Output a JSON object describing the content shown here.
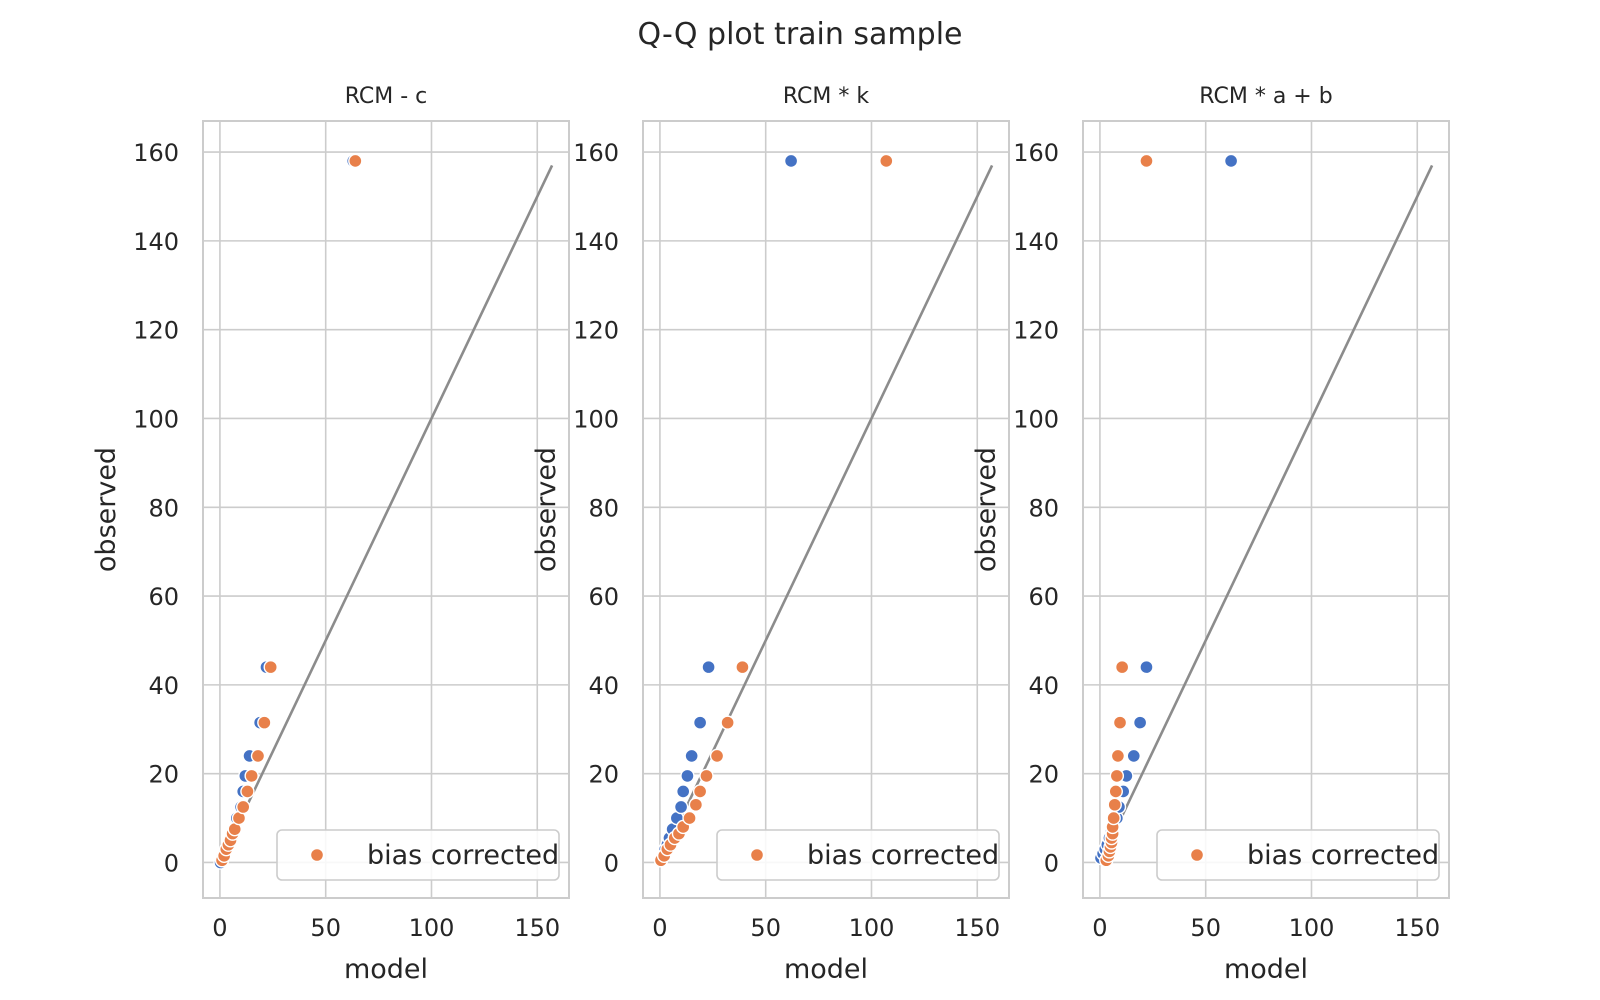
{
  "figure": {
    "title": "Q-Q plot train sample"
  },
  "colors": {
    "raw": "#4472c4",
    "bias_corrected": "#e8804a",
    "identity_line": "#8c8c8c",
    "grid": "#cccccc",
    "frame": "#cccccc"
  },
  "chart_data": [
    {
      "type": "scatter",
      "title": "RCM - c",
      "xlabel": "model",
      "ylabel": "observed",
      "xlim": [
        -8,
        165
      ],
      "ylim": [
        -8,
        167
      ],
      "xticks": [
        0,
        50,
        100,
        150
      ],
      "yticks": [
        0,
        20,
        40,
        60,
        80,
        100,
        120,
        140,
        160
      ],
      "grid": true,
      "legend": {
        "position": "lower-right",
        "entries": [
          "bias corrected"
        ]
      },
      "reference_line": {
        "from": [
          0,
          0
        ],
        "to": [
          157,
          157
        ]
      },
      "series": [
        {
          "color_key": "raw",
          "points": [
            [
              0.3,
              0
            ],
            [
              1,
              1
            ],
            [
              2,
              2
            ],
            [
              3,
              3
            ],
            [
              4,
              4
            ],
            [
              5,
              5
            ],
            [
              6,
              6
            ],
            [
              7,
              7.5
            ],
            [
              8,
              10
            ],
            [
              10,
              12.5
            ],
            [
              11,
              16
            ],
            [
              12,
              19.5
            ],
            [
              14,
              24
            ],
            [
              19,
              31.5
            ],
            [
              22,
              44
            ],
            [
              63,
              158
            ]
          ]
        },
        {
          "name": "bias corrected",
          "color_key": "bias_corrected",
          "points": [
            [
              1,
              0.5
            ],
            [
              2,
              1.5
            ],
            [
              3,
              3
            ],
            [
              4,
              4
            ],
            [
              5,
              5
            ],
            [
              6,
              6.5
            ],
            [
              7,
              7.5
            ],
            [
              9,
              10
            ],
            [
              11,
              12.5
            ],
            [
              13,
              16
            ],
            [
              15,
              19.5
            ],
            [
              18,
              24
            ],
            [
              21,
              31.5
            ],
            [
              24,
              44
            ],
            [
              64,
              158
            ]
          ]
        }
      ]
    },
    {
      "type": "scatter",
      "title": "RCM * k",
      "xlabel": "model",
      "ylabel": "observed",
      "xlim": [
        -8,
        165
      ],
      "ylim": [
        -8,
        167
      ],
      "xticks": [
        0,
        50,
        100,
        150
      ],
      "yticks": [
        0,
        20,
        40,
        60,
        80,
        100,
        120,
        140,
        160
      ],
      "grid": true,
      "legend": {
        "position": "lower-right",
        "entries": [
          "bias corrected"
        ]
      },
      "reference_line": {
        "from": [
          0,
          0
        ],
        "to": [
          157,
          157
        ]
      },
      "series": [
        {
          "color_key": "raw",
          "points": [
            [
              0.5,
              0.5
            ],
            [
              1.5,
              1.5
            ],
            [
              2.5,
              3
            ],
            [
              3.5,
              4
            ],
            [
              4.5,
              5.5
            ],
            [
              6,
              7.5
            ],
            [
              8,
              10
            ],
            [
              10,
              12.5
            ],
            [
              11,
              16
            ],
            [
              13,
              19.5
            ],
            [
              15,
              24
            ],
            [
              19,
              31.5
            ],
            [
              23,
              44
            ],
            [
              62,
              158
            ]
          ]
        },
        {
          "name": "bias corrected",
          "color_key": "bias_corrected",
          "points": [
            [
              0.5,
              0.5
            ],
            [
              2,
              1.5
            ],
            [
              3.5,
              3
            ],
            [
              5,
              4
            ],
            [
              7,
              5.5
            ],
            [
              9,
              6.5
            ],
            [
              11,
              8
            ],
            [
              14,
              10
            ],
            [
              17,
              13
            ],
            [
              19,
              16
            ],
            [
              22,
              19.5
            ],
            [
              27,
              24
            ],
            [
              32,
              31.5
            ],
            [
              39,
              44
            ],
            [
              107,
              158
            ]
          ]
        }
      ]
    },
    {
      "type": "scatter",
      "title": "RCM * a + b",
      "xlabel": "model",
      "ylabel": "observed",
      "xlim": [
        -8,
        165
      ],
      "ylim": [
        -8,
        167
      ],
      "xticks": [
        0,
        50,
        100,
        150
      ],
      "yticks": [
        0,
        20,
        40,
        60,
        80,
        100,
        120,
        140,
        160
      ],
      "grid": true,
      "legend": {
        "position": "lower-right",
        "entries": [
          "bias corrected"
        ]
      },
      "reference_line": {
        "from": [
          0,
          0
        ],
        "to": [
          157,
          157
        ]
      },
      "series": [
        {
          "color_key": "raw",
          "points": [
            [
              0.5,
              1
            ],
            [
              1.5,
              2
            ],
            [
              2.5,
              3
            ],
            [
              3.5,
              4
            ],
            [
              4.5,
              5.5
            ],
            [
              5.5,
              7
            ],
            [
              6.5,
              8.5
            ],
            [
              8,
              10
            ],
            [
              9,
              12.5
            ],
            [
              11,
              16
            ],
            [
              12.5,
              19.5
            ],
            [
              16,
              24
            ],
            [
              19,
              31.5
            ],
            [
              22,
              44
            ],
            [
              62,
              158
            ]
          ]
        },
        {
          "name": "bias corrected",
          "color_key": "bias_corrected",
          "points": [
            [
              3,
              0.5
            ],
            [
              4,
              1.5
            ],
            [
              4.5,
              2.5
            ],
            [
              5,
              3.5
            ],
            [
              5.5,
              4.5
            ],
            [
              5.5,
              5.5
            ],
            [
              6,
              6.5
            ],
            [
              6,
              8
            ],
            [
              6.5,
              10
            ],
            [
              7,
              13
            ],
            [
              7.5,
              16
            ],
            [
              8,
              19.5
            ],
            [
              8.5,
              24
            ],
            [
              9.5,
              31.5
            ],
            [
              10.5,
              44
            ],
            [
              22,
              158
            ]
          ]
        }
      ]
    }
  ]
}
